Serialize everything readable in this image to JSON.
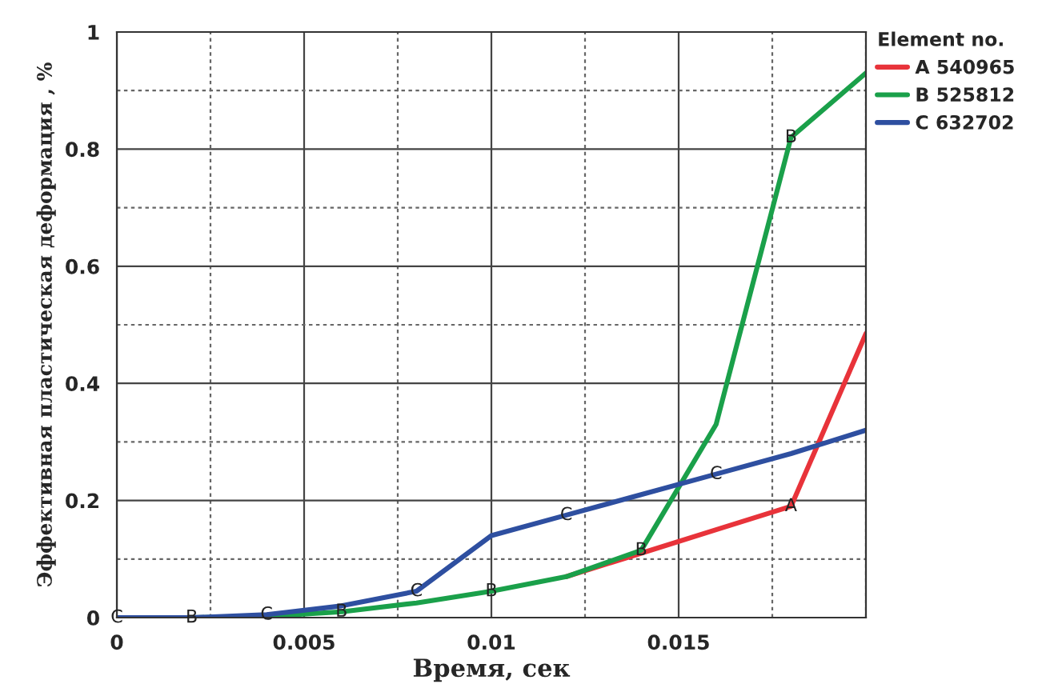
{
  "chart_data": {
    "type": "line",
    "xlabel": "Время, сек",
    "ylabel": "Эффективная пластическая деформация , %",
    "legend_title": "Element no.",
    "x": [
      0,
      0.002,
      0.004,
      0.006,
      0.008,
      0.01,
      0.012,
      0.014,
      0.016,
      0.018,
      0.02
    ],
    "series": [
      {
        "name": "A 540965",
        "color": "#e8333a",
        "values": [
          null,
          null,
          null,
          null,
          null,
          null,
          0.07,
          0.11,
          0.15,
          0.19,
          0.485
        ]
      },
      {
        "name": "B 525812",
        "color": "#1aa04a",
        "values": [
          0,
          0,
          0.002,
          0.01,
          0.025,
          0.045,
          0.07,
          0.115,
          0.33,
          0.82,
          0.93
        ]
      },
      {
        "name": "C 632702",
        "color": "#2e4fa0",
        "values": [
          0,
          0,
          0.005,
          0.02,
          0.045,
          0.14,
          0.175,
          0.21,
          0.245,
          0.28,
          0.32
        ]
      }
    ],
    "xlim": [
      0,
      0.02
    ],
    "ylim": [
      0,
      1
    ],
    "xticks": [
      0,
      0.005,
      0.01,
      0.015
    ],
    "yticks": [
      0,
      0.2,
      0.4,
      0.6,
      0.8,
      1
    ],
    "grid": true,
    "legend": "top right",
    "line_style": "solid",
    "annotations": [
      {
        "text": "C",
        "x": 0,
        "y": 0
      },
      {
        "text": "B",
        "x": 0.002,
        "y": 0
      },
      {
        "text": "C",
        "x": 0.004,
        "y": 0.005
      },
      {
        "text": "B",
        "x": 0.006,
        "y": 0.01
      },
      {
        "text": "C",
        "x": 0.008,
        "y": 0.045
      },
      {
        "text": "B",
        "x": 0.01,
        "y": 0.045
      },
      {
        "text": "C",
        "x": 0.012,
        "y": 0.175
      },
      {
        "text": "B",
        "x": 0.014,
        "y": 0.115
      },
      {
        "text": "C",
        "x": 0.016,
        "y": 0.245
      },
      {
        "text": "B",
        "x": 0.018,
        "y": 0.82
      },
      {
        "text": "A",
        "x": 0.018,
        "y": 0.19
      }
    ]
  }
}
